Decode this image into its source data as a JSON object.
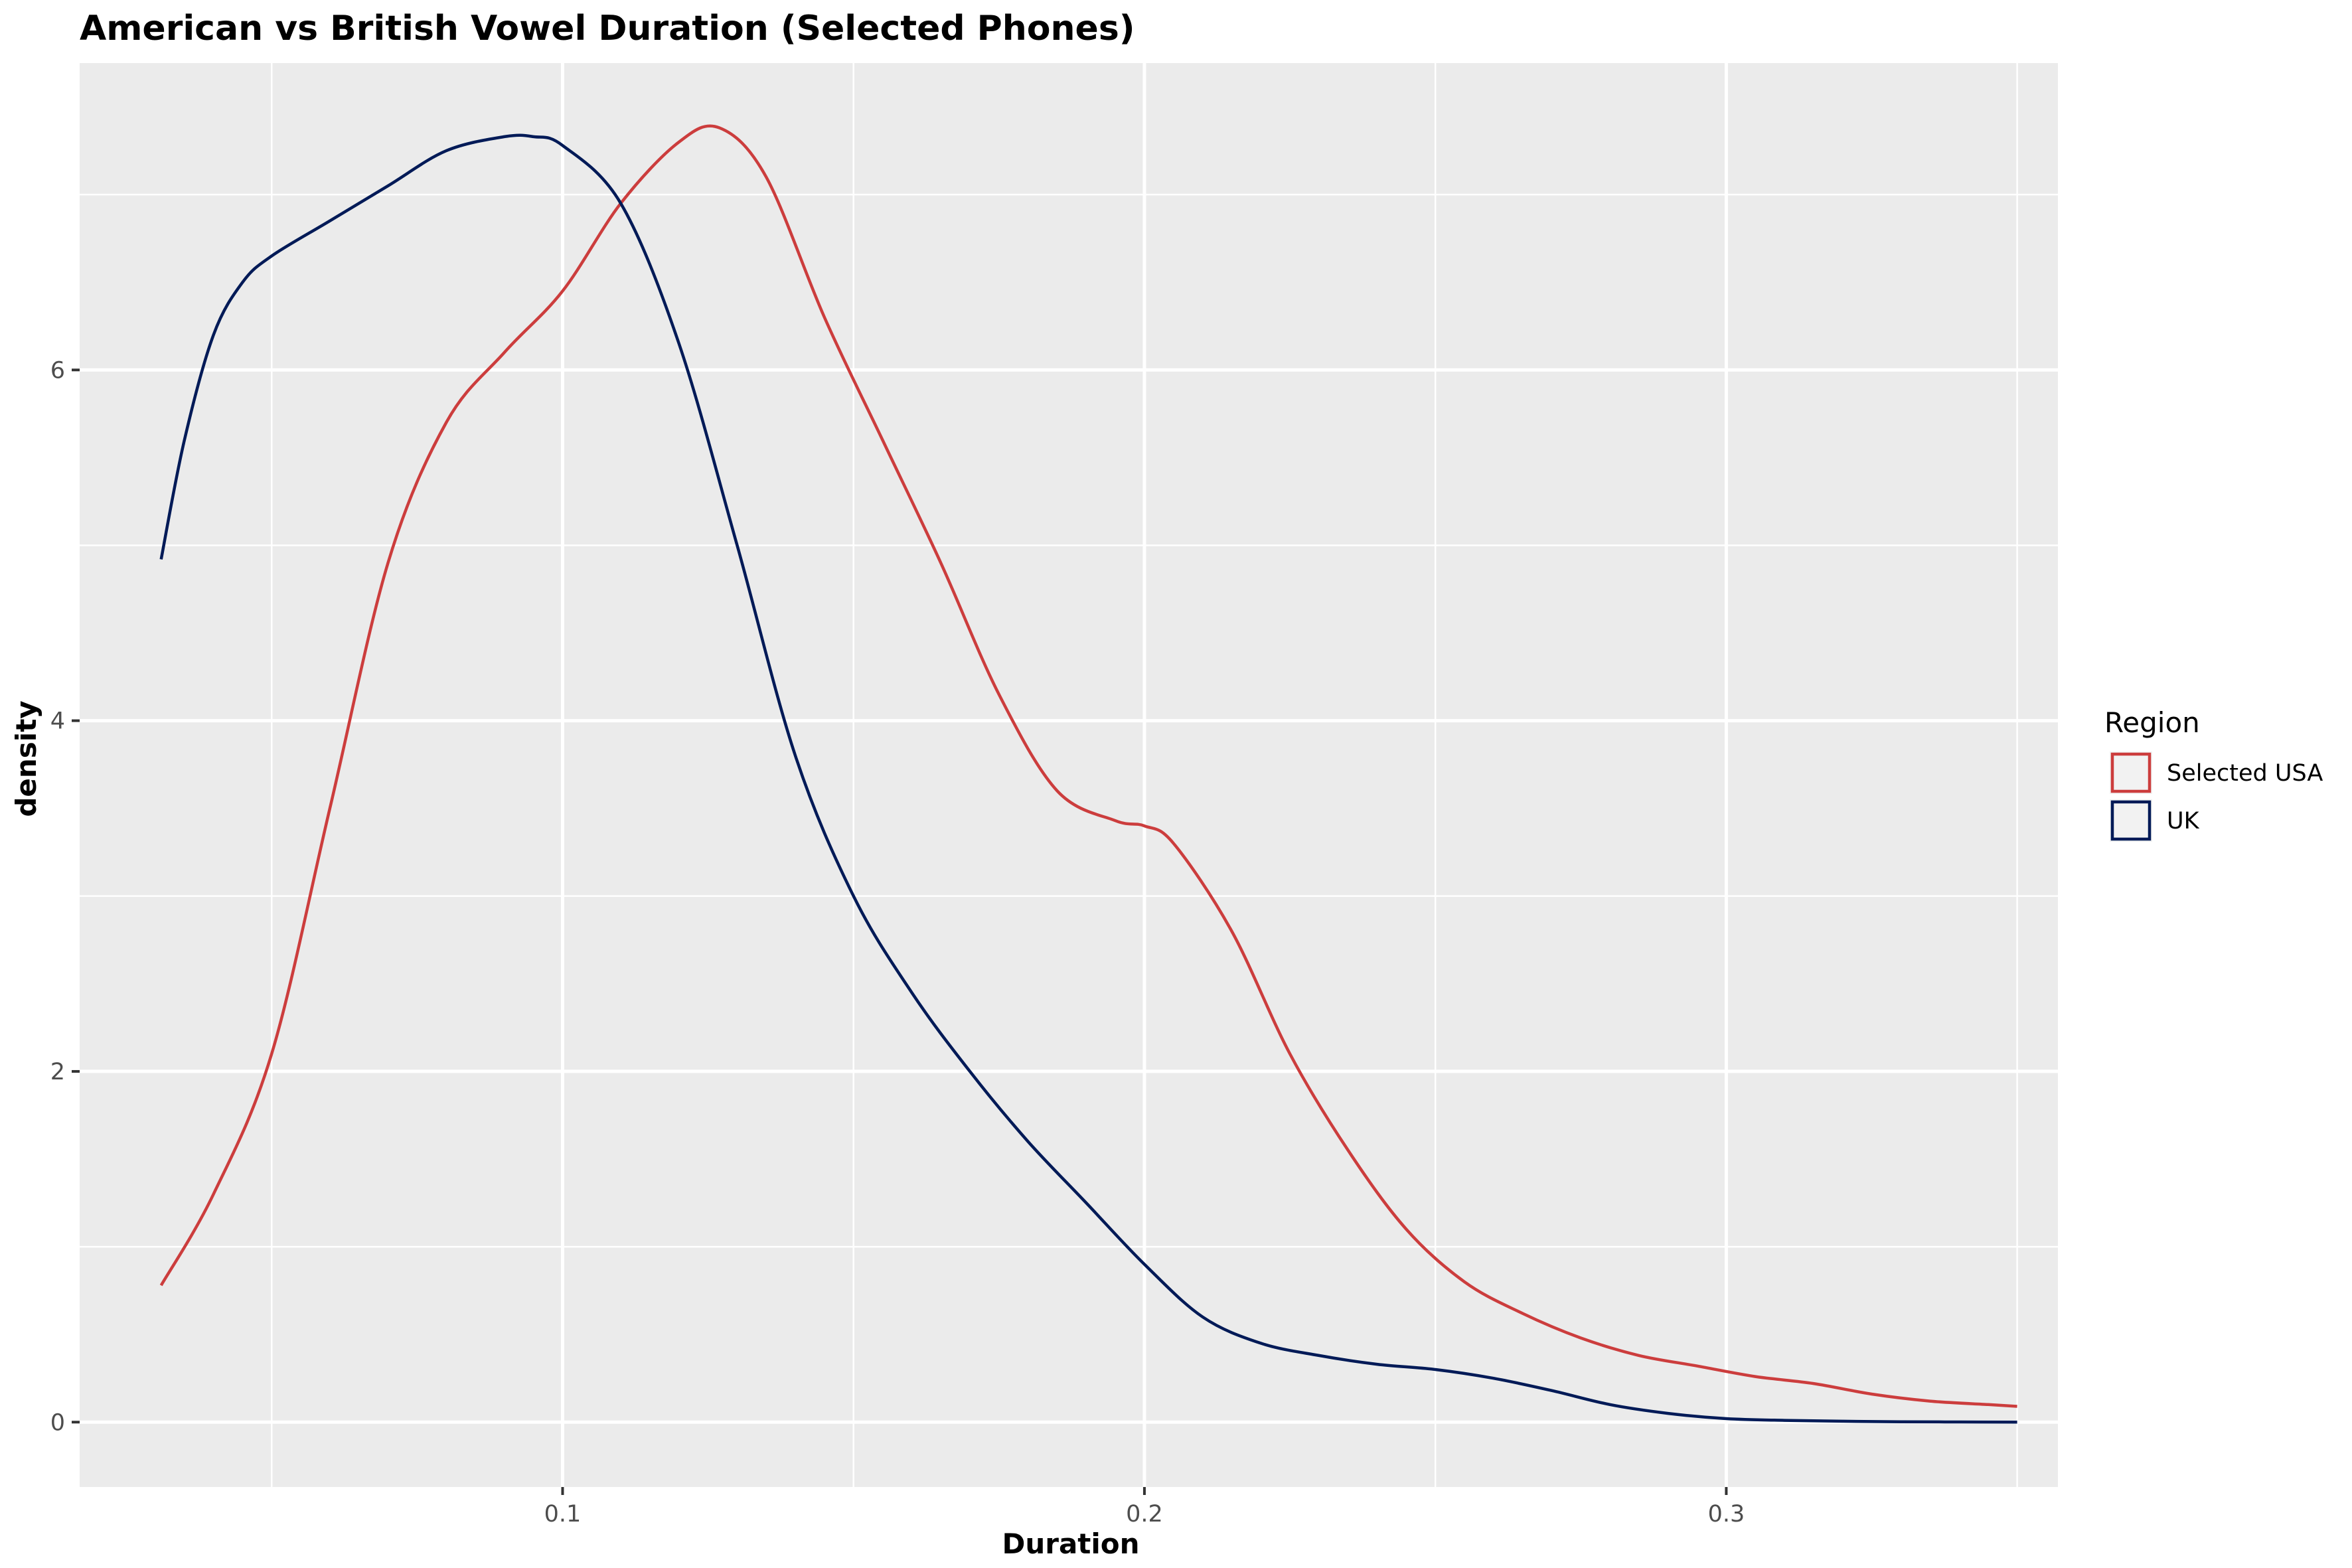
{
  "chart_data": {
    "type": "line",
    "title": "American vs British Vowel Duration (Selected Phones)",
    "xlabel": "Duration",
    "ylabel": "density",
    "xlim": [
      0.017,
      0.357
    ],
    "ylim": [
      -0.37,
      7.75
    ],
    "x_ticks": [
      0.1,
      0.2,
      0.3
    ],
    "x_tick_labels": [
      "0.1",
      "0.2",
      "0.3"
    ],
    "x_minor_ticks": [
      0.05,
      0.15,
      0.25,
      0.35
    ],
    "y_ticks": [
      0,
      2,
      4,
      6
    ],
    "y_tick_labels": [
      "0",
      "2",
      "4",
      "6"
    ],
    "y_minor_ticks": [
      1,
      3,
      5,
      7
    ],
    "grid": true,
    "legend": {
      "title": "Region",
      "position": "right"
    },
    "colors": {
      "panel": "#EBEBEB",
      "grid": "#FFFFFF",
      "legend_key": "#F2F2F2"
    },
    "series": [
      {
        "name": "Selected USA",
        "color": "#CC3D3D",
        "x": [
          0.031,
          0.04,
          0.05,
          0.06,
          0.07,
          0.08,
          0.09,
          0.1,
          0.11,
          0.12,
          0.127,
          0.135,
          0.145,
          0.155,
          0.165,
          0.175,
          0.185,
          0.195,
          0.2,
          0.205,
          0.215,
          0.225,
          0.235,
          0.245,
          0.255,
          0.265,
          0.275,
          0.285,
          0.295,
          0.305,
          0.315,
          0.325,
          0.335,
          0.345,
          0.35
        ],
        "y": [
          0.78,
          1.3,
          2.1,
          3.5,
          4.9,
          5.7,
          6.1,
          6.45,
          6.95,
          7.3,
          7.38,
          7.1,
          6.3,
          5.6,
          4.9,
          4.15,
          3.6,
          3.43,
          3.4,
          3.3,
          2.8,
          2.1,
          1.55,
          1.1,
          0.8,
          0.62,
          0.48,
          0.38,
          0.32,
          0.26,
          0.22,
          0.16,
          0.12,
          0.1,
          0.09
        ]
      },
      {
        "name": "UK",
        "color": "#001A57",
        "x": [
          0.031,
          0.035,
          0.04,
          0.045,
          0.05,
          0.06,
          0.07,
          0.08,
          0.09,
          0.095,
          0.1,
          0.11,
          0.12,
          0.13,
          0.14,
          0.15,
          0.16,
          0.17,
          0.18,
          0.19,
          0.2,
          0.21,
          0.22,
          0.23,
          0.24,
          0.25,
          0.26,
          0.27,
          0.28,
          0.29,
          0.3,
          0.31,
          0.32,
          0.33,
          0.34,
          0.35
        ],
        "y": [
          4.92,
          5.6,
          6.2,
          6.5,
          6.65,
          6.85,
          7.05,
          7.25,
          7.33,
          7.33,
          7.28,
          6.95,
          6.15,
          5.0,
          3.8,
          3.0,
          2.45,
          2.0,
          1.6,
          1.25,
          0.9,
          0.6,
          0.45,
          0.38,
          0.33,
          0.3,
          0.25,
          0.18,
          0.1,
          0.05,
          0.02,
          0.01,
          0.005,
          0.002,
          0.001,
          0.0
        ]
      }
    ]
  }
}
